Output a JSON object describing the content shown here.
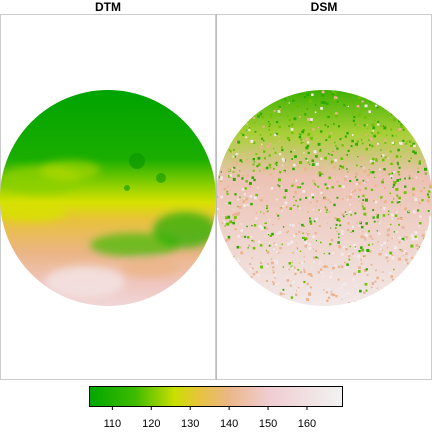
{
  "chart_data": {
    "type": "heatmap",
    "panels": [
      {
        "id": "dtm",
        "title": "DTM"
      },
      {
        "id": "dsm",
        "title": "DSM"
      }
    ],
    "colorbar": {
      "min": 104,
      "max": 169,
      "ticks": [
        110,
        120,
        130,
        140,
        150,
        160
      ],
      "tick_labels": [
        "110",
        "120",
        "130",
        "140",
        "150",
        "160"
      ],
      "colormap": "terrain",
      "stops": [
        {
          "value": 104,
          "color": "#00a600"
        },
        {
          "value": 116,
          "color": "#3fbb00"
        },
        {
          "value": 126,
          "color": "#c9df00"
        },
        {
          "value": 132,
          "color": "#e6c43a"
        },
        {
          "value": 140,
          "color": "#ebb689"
        },
        {
          "value": 150,
          "color": "#efccd0"
        },
        {
          "value": 169,
          "color": "#f2f2f2"
        }
      ]
    },
    "grid": false,
    "legend_position": "bottom"
  }
}
